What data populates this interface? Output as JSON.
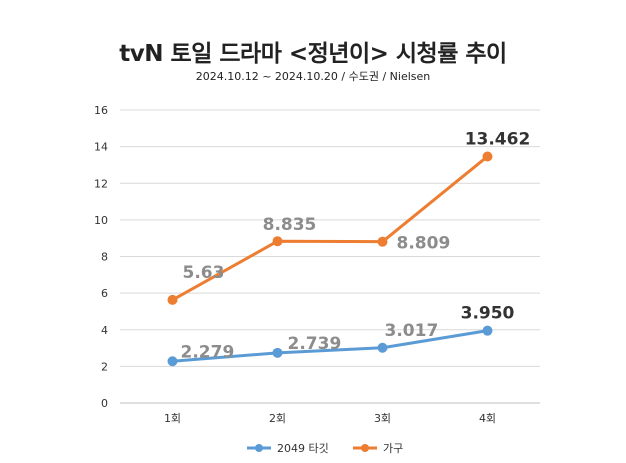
{
  "chart_data": {
    "type": "line",
    "title": "tvN 토일 드라마 <정년이> 시청률 추이",
    "subtitle": "2024.10.12 ~ 2024.10.20 / 수도권 / Nielsen",
    "categories": [
      "1회",
      "2회",
      "3회",
      "4회"
    ],
    "ylim": [
      0,
      16
    ],
    "yticks": [
      "0",
      "2",
      "4",
      "6",
      "8",
      "10",
      "12",
      "14",
      "16"
    ],
    "grid": true,
    "legend_position": "bottom",
    "series": [
      {
        "name": "2049 타깃",
        "color": "#5b9bd5",
        "values": [
          2.279,
          2.739,
          3.017,
          3.95
        ],
        "labels": [
          "2.279",
          "2.739",
          "3.017",
          "3.950"
        ]
      },
      {
        "name": "가구",
        "color": "#ed7d31",
        "values": [
          5.63,
          8.835,
          8.809,
          13.462
        ],
        "labels": [
          "5.63",
          "8.835",
          "8.809",
          "13.462"
        ]
      }
    ]
  }
}
